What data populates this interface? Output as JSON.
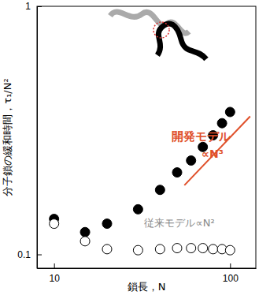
{
  "chart_data": {
    "type": "scatter",
    "x_label": "鎖長，N",
    "y_label": "分子鎖の緩和時間，τ₁/N²",
    "log": true,
    "grid": false,
    "xlim": [
      8,
      140
    ],
    "ylim": [
      0.088,
      1
    ],
    "xticks": [
      10,
      100
    ],
    "yticks": [
      0.1,
      1
    ],
    "annotations": [
      {
        "text": "開発モデル",
        "color": "#e0502a"
      },
      {
        "text": "∝N³",
        "color": "#e0502a"
      },
      {
        "text": "従来モデル∝N²",
        "color": "#888888"
      }
    ],
    "series": [
      {
        "type": "scatter",
        "marker": "circle",
        "color": "#000000",
        "x": [
          10,
          15,
          20,
          30,
          40,
          50,
          60,
          70,
          80,
          90,
          100
        ],
        "values": [
          0.139,
          0.123,
          0.133,
          0.152,
          0.182,
          0.214,
          0.239,
          0.271,
          0.302,
          0.338,
          0.375
        ]
      },
      {
        "type": "scatter",
        "marker": "open-circle",
        "color": "#000000",
        "x": [
          10,
          15,
          20,
          30,
          40,
          50,
          60,
          70,
          80,
          90,
          100
        ],
        "values": [
          0.133,
          0.113,
          0.105,
          0.104,
          0.105,
          0.106,
          0.106,
          0.106,
          0.105,
          0.105,
          0.104
        ]
      },
      {
        "type": "line",
        "line_style": "solid",
        "color": "#e0502a",
        "x": [
          55,
          130
        ],
        "values": [
          0.19,
          0.36
        ]
      }
    ]
  }
}
